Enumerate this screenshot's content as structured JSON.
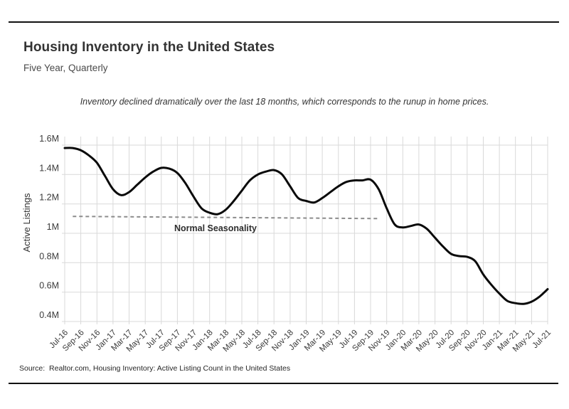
{
  "header": {
    "title": "Housing Inventory in the United States",
    "subtitle": "Five Year, Quarterly",
    "annotation": "Inventory declined dramatically over the last 18 months, which corresponds to the runup in home prices."
  },
  "footer": {
    "source": "Source:  Realtor.com, Housing Inventory: Active Listing Count in the United States"
  },
  "chart_data": {
    "type": "line",
    "title": "Housing Inventory in the United States",
    "subtitle": "Five Year, Quarterly",
    "xlabel": "",
    "ylabel": "Active Listings",
    "ylim": [
      0.35,
      1.65
    ],
    "grid": true,
    "legend_position": "none",
    "line_color": "#0a0a0a",
    "grid_color": "#d9d9d9",
    "y_tick_values": [
      0.4,
      0.6,
      0.8,
      1.0,
      1.2,
      1.4,
      1.6
    ],
    "y_tick_labels": [
      "0.4M",
      "0.6M",
      "0.8M",
      "1M",
      "1.2M",
      "1.4M",
      "1.6M"
    ],
    "x_tick_labels": [
      "Jul-16",
      "Sep-16",
      "Nov-16",
      "Jan-17",
      "Mar-17",
      "May-17",
      "Jul-17",
      "Sep-17",
      "Nov-17",
      "Jan-18",
      "Mar-18",
      "May-18",
      "Jul-18",
      "Sep-18",
      "Nov-18",
      "Jan-19",
      "Mar-19",
      "May-19",
      "Jul-19",
      "Sep-19",
      "Nov-19",
      "Jan-20",
      "Mar-20",
      "May-20",
      "Jul-20",
      "Sep-20",
      "Nov-20",
      "Jan-21",
      "Mar-21",
      "May-21",
      "Jul-21"
    ],
    "x": [
      "Jul-16",
      "Aug-16",
      "Sep-16",
      "Oct-16",
      "Nov-16",
      "Dec-16",
      "Jan-17",
      "Feb-17",
      "Mar-17",
      "Apr-17",
      "May-17",
      "Jun-17",
      "Jul-17",
      "Aug-17",
      "Sep-17",
      "Oct-17",
      "Nov-17",
      "Dec-17",
      "Jan-18",
      "Feb-18",
      "Mar-18",
      "Apr-18",
      "May-18",
      "Jun-18",
      "Jul-18",
      "Aug-18",
      "Sep-18",
      "Oct-18",
      "Nov-18",
      "Dec-18",
      "Jan-19",
      "Feb-19",
      "Mar-19",
      "Apr-19",
      "May-19",
      "Jun-19",
      "Jul-19",
      "Aug-19",
      "Sep-19",
      "Oct-19",
      "Nov-19",
      "Dec-19",
      "Jan-20",
      "Feb-20",
      "Mar-20",
      "Apr-20",
      "May-20",
      "Jun-20",
      "Jul-20",
      "Aug-20",
      "Sep-20",
      "Oct-20",
      "Nov-20",
      "Dec-20",
      "Jan-21",
      "Feb-21",
      "Mar-21",
      "Apr-21",
      "May-21",
      "Jun-21",
      "Jul-21"
    ],
    "series": [
      {
        "name": "Active Listing Count (millions)",
        "values": [
          1.58,
          1.58,
          1.565,
          1.53,
          1.48,
          1.39,
          1.3,
          1.26,
          1.28,
          1.33,
          1.38,
          1.42,
          1.445,
          1.44,
          1.41,
          1.34,
          1.25,
          1.17,
          1.14,
          1.13,
          1.16,
          1.22,
          1.29,
          1.36,
          1.4,
          1.42,
          1.43,
          1.4,
          1.32,
          1.24,
          1.22,
          1.21,
          1.24,
          1.28,
          1.32,
          1.35,
          1.36,
          1.36,
          1.365,
          1.3,
          1.17,
          1.06,
          1.04,
          1.05,
          1.06,
          1.03,
          0.97,
          0.91,
          0.86,
          0.845,
          0.84,
          0.81,
          0.72,
          0.65,
          0.59,
          0.54,
          0.525,
          0.52,
          0.535,
          0.57,
          0.62
        ]
      }
    ],
    "annotation_line": {
      "label": "Normal Seasonality",
      "style": "dashed",
      "color": "#8c8c8c",
      "x_start": "Aug-16",
      "x_end": "Oct-19",
      "value_start": 1.115,
      "value_end": 1.1
    }
  }
}
